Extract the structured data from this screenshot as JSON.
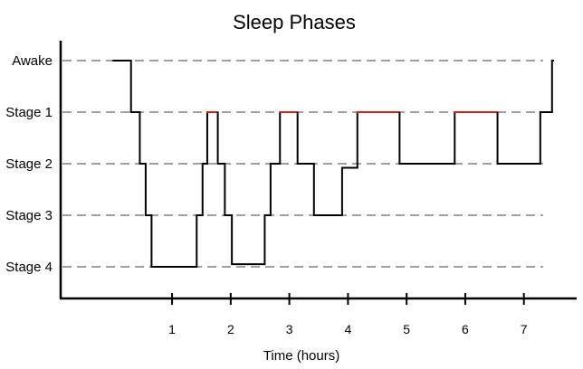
{
  "chart_data": {
    "type": "line",
    "title": "Sleep Phases",
    "xlabel": "Time (hours)",
    "ylabel": "",
    "xlim": [
      -0.9,
      7.9
    ],
    "x_ticks": [
      "1",
      "2",
      "3",
      "4",
      "5",
      "6",
      "7"
    ],
    "y_categories": [
      "Awake",
      "Stage 1",
      "Stage 2",
      "Stage 3",
      "Stage 4"
    ],
    "grid": "horizontal-dashed",
    "colors": {
      "line": "#000000",
      "rem": "#cc2222",
      "grid": "#666666"
    },
    "series": [
      {
        "steps": [
          {
            "start": 0.0,
            "end": 0.3,
            "level": 0
          },
          {
            "start": 0.3,
            "end": 0.45,
            "level": 1
          },
          {
            "start": 0.45,
            "end": 0.55,
            "level": 2
          },
          {
            "start": 0.55,
            "end": 0.65,
            "level": 3
          },
          {
            "start": 0.65,
            "end": 1.42,
            "level": 4
          },
          {
            "start": 1.42,
            "end": 1.52,
            "level": 3
          },
          {
            "start": 1.52,
            "end": 1.6,
            "level": 2
          },
          {
            "start": 1.6,
            "end": 1.78,
            "level": 1,
            "rem": true
          },
          {
            "start": 1.78,
            "end": 1.9,
            "level": 2
          },
          {
            "start": 1.9,
            "end": 2.02,
            "level": 3
          },
          {
            "start": 2.02,
            "end": 2.58,
            "level": 3.95
          },
          {
            "start": 2.58,
            "end": 2.68,
            "level": 3
          },
          {
            "start": 2.68,
            "end": 2.84,
            "level": 2
          },
          {
            "start": 2.84,
            "end": 3.14,
            "level": 1,
            "rem": true
          },
          {
            "start": 3.14,
            "end": 3.42,
            "level": 2
          },
          {
            "start": 3.42,
            "end": 3.9,
            "level": 3
          },
          {
            "start": 3.9,
            "end": 4.16,
            "level": 2.08
          },
          {
            "start": 4.16,
            "end": 4.88,
            "level": 1,
            "rem": true
          },
          {
            "start": 4.88,
            "end": 5.82,
            "level": 2
          },
          {
            "start": 5.82,
            "end": 6.55,
            "level": 1,
            "rem": true
          },
          {
            "start": 6.55,
            "end": 7.28,
            "level": 2
          },
          {
            "start": 7.28,
            "end": 7.48,
            "level": 1
          },
          {
            "start": 7.48,
            "end": 7.5,
            "level": 0
          }
        ]
      }
    ]
  }
}
